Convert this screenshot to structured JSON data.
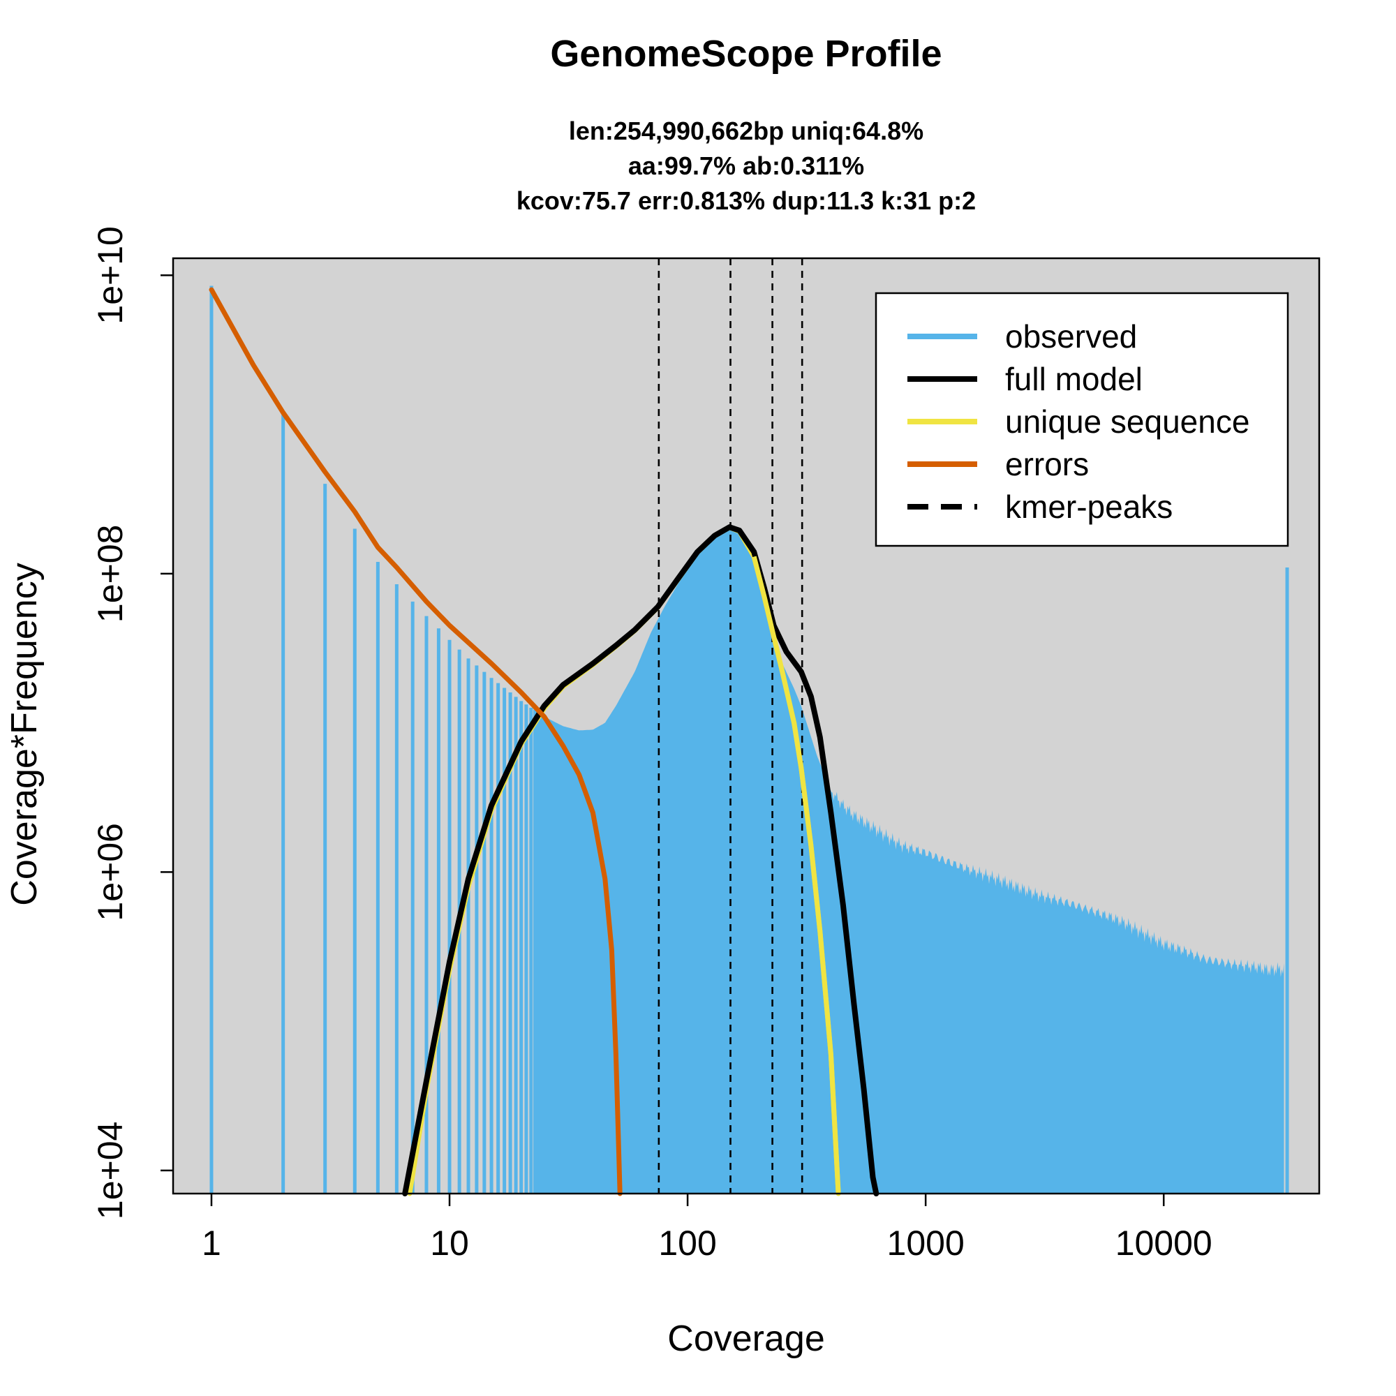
{
  "chart_data": {
    "type": "line",
    "title": "GenomeScope Profile",
    "subtitle_lines": [
      "len:254,990,662bp uniq:64.8%",
      "aa:99.7% ab:0.311%",
      "kcov:75.7 err:0.813%  dup:11.3  k:31 p:2"
    ],
    "xlabel": "Coverage",
    "ylabel": "Coverage*Frequency",
    "x_scale": "log",
    "y_scale": "log",
    "xlim": [
      0.69,
      45000
    ],
    "ylim": [
      7000,
      13000000000
    ],
    "x_ticks": [
      {
        "value": 1,
        "label": "1"
      },
      {
        "value": 10,
        "label": "10"
      },
      {
        "value": 100,
        "label": "100"
      },
      {
        "value": 1000,
        "label": "1000"
      },
      {
        "value": 10000,
        "label": "10000"
      }
    ],
    "y_ticks": [
      {
        "value": 10000,
        "label": "1e+04"
      },
      {
        "value": 1000000,
        "label": "1e+06"
      },
      {
        "value": 100000000,
        "label": "1e+08"
      },
      {
        "value": 10000000000,
        "label": "1e+10"
      }
    ],
    "background_color": "#d3d3d3",
    "legend": {
      "position": "top-right",
      "entries": [
        {
          "label": "observed",
          "color": "#56b4e9",
          "style": "solid"
        },
        {
          "label": "full model",
          "color": "#000000",
          "style": "solid"
        },
        {
          "label": "unique sequence",
          "color": "#f0e442",
          "style": "solid"
        },
        {
          "label": "errors",
          "color": "#d55e00",
          "style": "solid"
        },
        {
          "label": "kmer-peaks",
          "color": "#000000",
          "style": "dashed"
        }
      ]
    },
    "kmer_peaks": [
      75.7,
      151.4,
      227.1,
      302.8
    ],
    "series": [
      {
        "name": "observed",
        "kind": "histogram",
        "color": "#56b4e9",
        "points": [
          [
            1,
            8500000000
          ],
          [
            2,
            1200000000
          ],
          [
            3,
            400000000
          ],
          [
            4,
            200000000
          ],
          [
            5,
            120000000
          ],
          [
            6,
            85000000
          ],
          [
            7,
            65000000
          ],
          [
            8,
            52000000
          ],
          [
            9,
            43000000
          ],
          [
            10,
            36000000
          ],
          [
            12,
            27000000
          ],
          [
            15,
            20000000
          ],
          [
            18,
            16000000
          ],
          [
            20,
            14000000
          ],
          [
            25,
            11000000
          ],
          [
            30,
            9500000
          ],
          [
            35,
            8900000
          ],
          [
            40,
            9000000
          ],
          [
            45,
            10000000
          ],
          [
            50,
            13000000
          ],
          [
            60,
            22000000
          ],
          [
            70,
            40000000
          ],
          [
            80,
            60000000
          ],
          [
            100,
            110000000
          ],
          [
            120,
            160000000
          ],
          [
            140,
            200000000
          ],
          [
            150,
            210000000
          ],
          [
            170,
            180000000
          ],
          [
            200,
            100000000
          ],
          [
            230,
            40000000
          ],
          [
            250,
            25000000
          ],
          [
            280,
            17000000
          ],
          [
            300,
            13000000
          ],
          [
            350,
            6000000
          ],
          [
            400,
            3500000
          ],
          [
            450,
            2800000
          ],
          [
            500,
            2400000
          ],
          [
            600,
            2000000
          ],
          [
            700,
            1700000
          ],
          [
            800,
            1500000
          ],
          [
            1000,
            1350000
          ],
          [
            1200,
            1200000
          ],
          [
            1500,
            1050000
          ],
          [
            2000,
            900000
          ],
          [
            2500,
            780000
          ],
          [
            3000,
            700000
          ],
          [
            4000,
            620000
          ],
          [
            5000,
            550000
          ],
          [
            6000,
            500000
          ],
          [
            7000,
            450000
          ],
          [
            8000,
            400000
          ],
          [
            10000,
            330000
          ],
          [
            12000,
            300000
          ],
          [
            15000,
            260000
          ],
          [
            20000,
            240000
          ],
          [
            25000,
            230000
          ],
          [
            28000,
            220000
          ],
          [
            30000,
            225000
          ],
          [
            32000,
            220000
          ],
          [
            33000,
            110000000
          ]
        ]
      },
      {
        "name": "full model",
        "kind": "line",
        "color": "#000000",
        "points": [
          [
            6.5,
            7000
          ],
          [
            8,
            40000
          ],
          [
            10,
            250000
          ],
          [
            12,
            900000
          ],
          [
            15,
            2800000
          ],
          [
            20,
            7500000
          ],
          [
            25,
            13000000
          ],
          [
            30,
            18000000
          ],
          [
            40,
            25000000
          ],
          [
            50,
            33000000
          ],
          [
            60,
            42000000
          ],
          [
            75,
            60000000
          ],
          [
            90,
            90000000
          ],
          [
            110,
            140000000
          ],
          [
            130,
            180000000
          ],
          [
            150,
            205000000
          ],
          [
            165,
            195000000
          ],
          [
            190,
            140000000
          ],
          [
            210,
            80000000
          ],
          [
            230,
            45000000
          ],
          [
            260,
            30000000
          ],
          [
            300,
            22000000
          ],
          [
            330,
            15000000
          ],
          [
            360,
            8000000
          ],
          [
            400,
            2500000
          ],
          [
            450,
            600000
          ],
          [
            500,
            130000
          ],
          [
            550,
            35000
          ],
          [
            600,
            9000
          ],
          [
            620,
            7000
          ]
        ]
      },
      {
        "name": "unique sequence",
        "kind": "line",
        "color": "#f0e442",
        "points": [
          [
            6.8,
            7000
          ],
          [
            8,
            35000
          ],
          [
            10,
            220000
          ],
          [
            12,
            800000
          ],
          [
            15,
            2600000
          ],
          [
            20,
            7200000
          ],
          [
            25,
            12500000
          ],
          [
            30,
            17500000
          ],
          [
            40,
            24500000
          ],
          [
            50,
            32500000
          ],
          [
            60,
            41500000
          ],
          [
            75,
            59500000
          ],
          [
            90,
            89000000
          ],
          [
            110,
            139000000
          ],
          [
            130,
            179000000
          ],
          [
            150,
            204000000
          ],
          [
            165,
            192000000
          ],
          [
            190,
            130000000
          ],
          [
            210,
            70000000
          ],
          [
            230,
            38000000
          ],
          [
            250,
            22000000
          ],
          [
            280,
            10000000
          ],
          [
            300,
            5000000
          ],
          [
            330,
            1500000
          ],
          [
            360,
            400000
          ],
          [
            400,
            60000
          ],
          [
            430,
            7000
          ]
        ]
      },
      {
        "name": "errors",
        "kind": "line",
        "color": "#d55e00",
        "points": [
          [
            1,
            8000000000
          ],
          [
            1.5,
            2500000000
          ],
          [
            2,
            1200000000
          ],
          [
            3,
            480000000
          ],
          [
            4,
            260000000
          ],
          [
            5,
            150000000
          ],
          [
            6,
            110000000
          ],
          [
            8,
            65000000
          ],
          [
            10,
            45000000
          ],
          [
            15,
            25000000
          ],
          [
            20,
            16000000
          ],
          [
            25,
            11000000
          ],
          [
            30,
            7000000
          ],
          [
            35,
            4500000
          ],
          [
            40,
            2500000
          ],
          [
            45,
            900000
          ],
          [
            48,
            300000
          ],
          [
            50,
            60000
          ],
          [
            51,
            20000
          ],
          [
            52,
            7000
          ]
        ]
      }
    ]
  }
}
